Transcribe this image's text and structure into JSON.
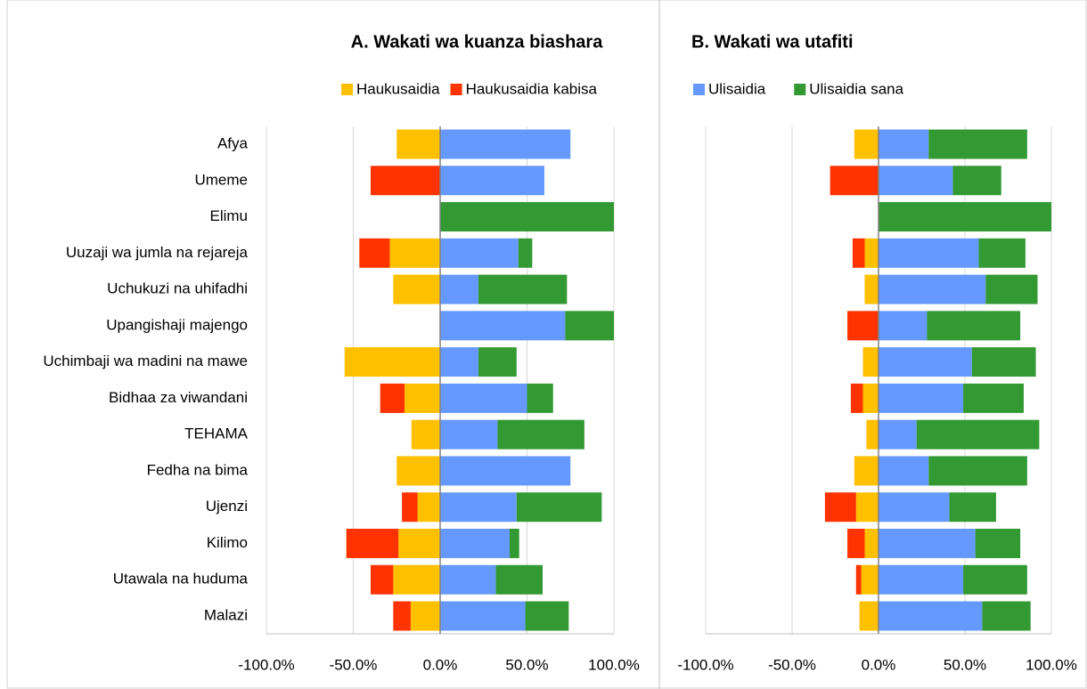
{
  "chart_data": [
    {
      "type": "bar",
      "orientation": "horizontal",
      "stacked": true,
      "grid": true,
      "title": "A. Wakati wa kuanza biashara",
      "categories": [
        "Afya",
        "Umeme",
        "Elimu",
        "Uuzaji wa jumla na rejareja",
        "Uchukuzi na uhifadhi",
        "Upangishaji majengo",
        "Uchimbaji wa madini na mawe",
        "Bidhaa za viwandani",
        "TEHAMA",
        "Fedha na bima",
        "Ujenzi",
        "Kilimo",
        "Utawala na huduma",
        "Malazi"
      ],
      "xlim": [
        -100,
        100
      ],
      "xticks": [
        {
          "value": -100,
          "label": "-100.0%"
        },
        {
          "value": -50,
          "label": "-50.0%"
        },
        {
          "value": 0,
          "label": "0.0%"
        },
        {
          "value": 50,
          "label": "50.0%"
        },
        {
          "value": 100,
          "label": "100.0%"
        }
      ],
      "series": [
        {
          "name": "Haukusaidia",
          "color": "#ffc000",
          "in_legend": true,
          "values": [
            -25,
            0,
            0,
            -29,
            -27,
            0,
            -55,
            -20.5,
            -16.5,
            -25,
            -13,
            -24,
            -27,
            -17
          ]
        },
        {
          "name": "Haukusaidia kabisa",
          "color": "#ff3300",
          "in_legend": true,
          "values": [
            0,
            -40,
            0,
            -17.5,
            0,
            0,
            0,
            -14,
            0,
            0,
            -9,
            -30,
            -13,
            -10
          ]
        },
        {
          "name": "Ulisaidia",
          "color": "#6699ff",
          "in_legend": false,
          "values": [
            75,
            60,
            0,
            45,
            22,
            72,
            22,
            50,
            33,
            75,
            44,
            40,
            32,
            49
          ]
        },
        {
          "name": "Ulisaidia sana",
          "color": "#339933",
          "in_legend": false,
          "values": [
            0,
            0,
            100,
            8,
            51,
            28,
            22,
            15,
            50,
            0,
            49,
            5.5,
            27,
            25
          ]
        }
      ]
    },
    {
      "type": "bar",
      "orientation": "horizontal",
      "stacked": true,
      "grid": true,
      "title": "B. Wakati wa utafiti",
      "xlim": [
        -100,
        100
      ],
      "xticks": [
        {
          "value": -100,
          "label": "-100.0%"
        },
        {
          "value": -50,
          "label": "-50.0%"
        },
        {
          "value": 0,
          "label": "0.0%"
        },
        {
          "value": 50,
          "label": "50.0%"
        },
        {
          "value": 100,
          "label": "100.0%"
        }
      ],
      "series": [
        {
          "name": "Haukusaidia",
          "color": "#ffc000",
          "in_legend": false,
          "values": [
            -14,
            0,
            0,
            -8,
            -8,
            0,
            -9,
            -9,
            -7,
            -14,
            -13,
            -8,
            -10,
            -11
          ]
        },
        {
          "name": "Haukusaidia kabisa",
          "color": "#ff3300",
          "in_legend": false,
          "values": [
            0,
            -28,
            0,
            -7,
            0,
            -18,
            0,
            -7,
            0,
            0,
            -18,
            -10,
            -3,
            0
          ]
        },
        {
          "name": "Ulisaidia",
          "color": "#6699ff",
          "in_legend": true,
          "values": [
            29,
            43,
            0,
            58,
            62,
            28,
            54,
            49,
            22,
            29,
            41,
            56,
            49,
            60
          ]
        },
        {
          "name": "Ulisaidia sana",
          "color": "#339933",
          "in_legend": true,
          "values": [
            57,
            28,
            100,
            27,
            30,
            54,
            37,
            35,
            71,
            57,
            27,
            26,
            37,
            28
          ]
        }
      ]
    }
  ]
}
